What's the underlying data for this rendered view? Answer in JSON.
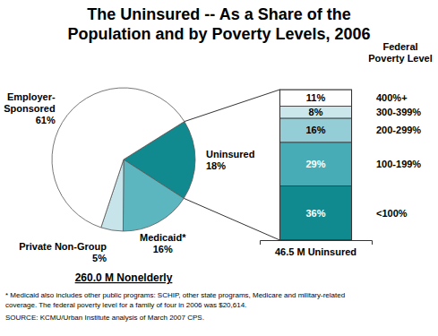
{
  "chart_data": [
    {
      "type": "pie",
      "title": [
        "The Uninsured -- As a Share of the",
        "Population and by Poverty Levels, 2006"
      ],
      "categories": [
        "Uninsured",
        "Medicaid*",
        "Private Non-Group",
        "Employer-Sponsored"
      ],
      "values": [
        18,
        16,
        5,
        61
      ],
      "value_labels": [
        "18%",
        "16%",
        "5%",
        "61%"
      ],
      "colors": [
        "#108a8f",
        "#5cb6bf",
        "#c6e4ea",
        "#ffffff"
      ],
      "data_labels": true,
      "annotations": [
        "260.0 M Nonelderly"
      ],
      "notes": [
        "* Medicaid also includes other public programs: SCHIP, other state programs, Medicare and military-related",
        "coverage. The federal poverty level for a family of four in 2006 was $20,614.",
        "SOURCE: KCMU/Urban Institute analysis of March 2007 CPS."
      ]
    },
    {
      "type": "bar",
      "stacked": true,
      "categories": [
        "46.5 M Uninsured"
      ],
      "series": [
        {
          "name": "<100%",
          "color": "#108a8f",
          "values": [
            36
          ],
          "value_labels": [
            "36%"
          ]
        },
        {
          "name": "100-199%",
          "color": "#48acb6",
          "values": [
            29
          ],
          "value_labels": [
            "29%"
          ]
        },
        {
          "name": "200-299%",
          "color": "#94cdd5",
          "values": [
            16
          ],
          "value_labels": [
            "16%"
          ]
        },
        {
          "name": "300-399%",
          "color": "#cce7ec",
          "values": [
            8
          ],
          "value_labels": [
            "8%"
          ]
        },
        {
          "name": "400%+",
          "color": "#ffffff",
          "values": [
            11
          ],
          "value_labels": [
            "11%"
          ]
        }
      ],
      "ylim": [
        0,
        100
      ],
      "tick_labels": "x",
      "data_labels": true,
      "legend": "right",
      "annotations": [
        "Federal Poverty Level"
      ]
    }
  ]
}
